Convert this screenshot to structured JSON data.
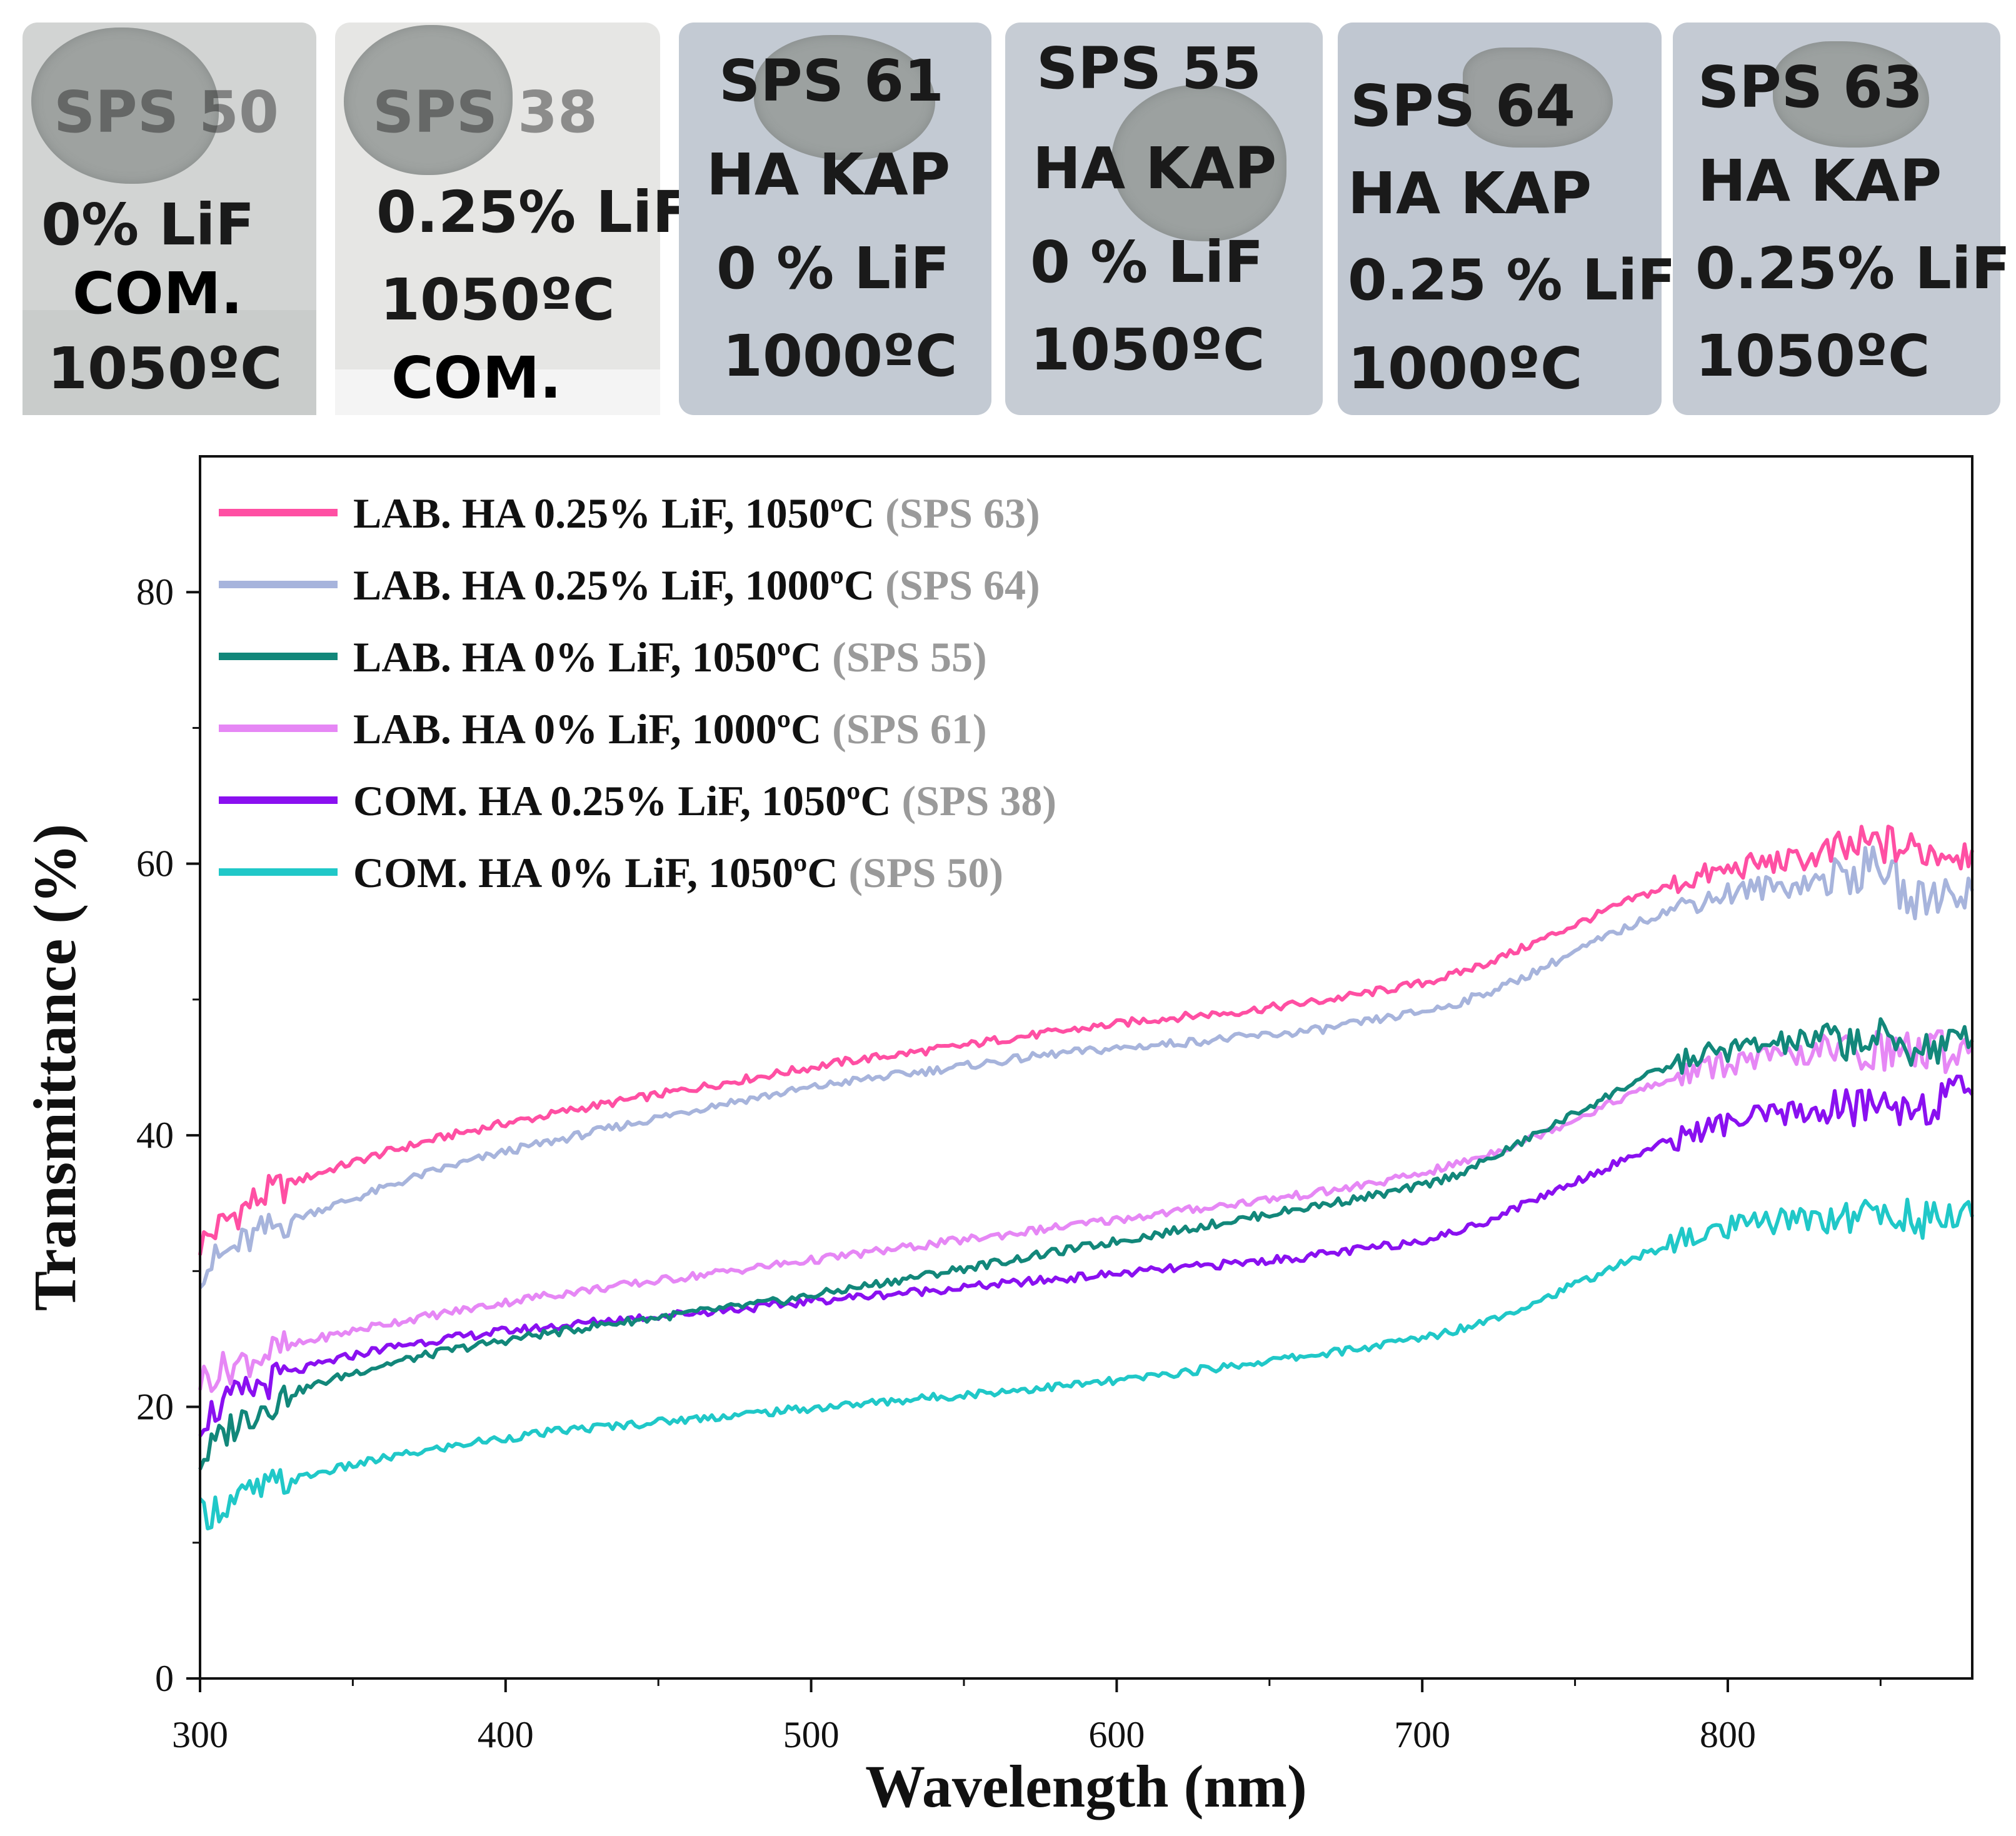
{
  "samples": [
    {
      "id": "SPS 50",
      "line1": "SPS 50",
      "line2": "0% LiF",
      "line3": "COM.",
      "line4": "1050ºC",
      "bg": "#d2d4d3"
    },
    {
      "id": "SPS 38",
      "line1": "SPS 38",
      "line2": "0.25% LiF",
      "line3": "1050ºC",
      "line4": "COM.",
      "bg": "#e6e6e4"
    },
    {
      "id": "SPS 61",
      "line1": "SPS 61",
      "line2": "HA KAP",
      "line3": "0 % LiF",
      "line4": "1000ºC",
      "bg": "#c3cad3"
    },
    {
      "id": "SPS 55",
      "line1": "SPS 55",
      "line2": "HA KAP",
      "line3": "0 % LiF",
      "line4": "1050ºC",
      "bg": "#c6ccd4"
    },
    {
      "id": "SPS 64",
      "line1": "SPS 64",
      "line2": "HA KAP",
      "line3": "0.25 % LiF",
      "line4": "1000ºC",
      "bg": "#c0c7d1"
    },
    {
      "id": "SPS 63",
      "line1": "SPS 63",
      "line2": "HA KAP",
      "line3": "0.25% LiF",
      "line4": "1050ºC",
      "bg": "#c4cad3"
    }
  ],
  "chart_data": {
    "type": "line",
    "xlabel": "Wavelength (nm)",
    "ylabel": "Transmittance (%)",
    "xlim": [
      300,
      880
    ],
    "ylim": [
      0,
      90
    ],
    "xticks": [
      300,
      400,
      500,
      600,
      700,
      800
    ],
    "yticks": [
      0,
      20,
      40,
      60,
      80
    ],
    "grid": false,
    "legend_position": "top-left",
    "x": [
      300,
      310,
      320,
      330,
      340,
      350,
      360,
      370,
      380,
      390,
      400,
      410,
      420,
      430,
      440,
      450,
      460,
      470,
      480,
      490,
      500,
      510,
      520,
      530,
      540,
      550,
      560,
      570,
      580,
      590,
      600,
      610,
      620,
      630,
      640,
      650,
      660,
      670,
      680,
      690,
      700,
      710,
      720,
      730,
      740,
      750,
      760,
      770,
      780,
      790,
      800,
      810,
      820,
      830,
      840,
      850,
      860,
      870,
      880
    ],
    "series": [
      {
        "name": "LAB. HA 0.25% LiF, 1050ºC",
        "tag": "(SPS 63)",
        "color": "#ff4fa3",
        "values": [
          32,
          34,
          35.5,
          36.5,
          37.3,
          38,
          38.7,
          39.3,
          39.9,
          40.4,
          40.9,
          41.3,
          41.8,
          42.2,
          42.6,
          43,
          43.4,
          43.8,
          44.2,
          44.6,
          45,
          45.4,
          45.7,
          46,
          46.3,
          46.6,
          47,
          47.3,
          47.6,
          47.9,
          48.2,
          48.5,
          48.7,
          48.9,
          49.1,
          49.4,
          49.7,
          50,
          50.4,
          50.8,
          51.2,
          51.8,
          52.6,
          53.5,
          54.5,
          55.5,
          56.5,
          57.5,
          58.3,
          59,
          59.5,
          60,
          60.2,
          60.5,
          61,
          61.5,
          61,
          61,
          61
        ]
      },
      {
        "name": "LAB. HA 0.25% LiF, 1000ºC",
        "tag": "(SPS 64)",
        "color": "#a7b4dc",
        "values": [
          30,
          31.5,
          32.8,
          33.8,
          34.6,
          35.3,
          36.1,
          36.9,
          37.6,
          38.2,
          38.8,
          39.3,
          39.8,
          40.3,
          40.8,
          41.3,
          41.8,
          42.3,
          42.7,
          43.1,
          43.5,
          43.9,
          44.2,
          44.5,
          44.8,
          45.1,
          45.4,
          45.7,
          46,
          46.2,
          46.4,
          46.6,
          46.8,
          47,
          47.2,
          47.4,
          47.6,
          47.9,
          48.3,
          48.7,
          49.1,
          49.6,
          50.4,
          51.3,
          52.4,
          53.5,
          54.6,
          55.6,
          56.5,
          57.3,
          57.8,
          58.2,
          58.4,
          58.8,
          59.2,
          60,
          57,
          58,
          58
        ]
      },
      {
        "name": "LAB. HA 0% LiF, 1050ºC",
        "tag": "(SPS 55)",
        "color": "#12877a",
        "values": [
          16,
          18.5,
          20,
          21,
          21.8,
          22.5,
          23.1,
          23.6,
          24.1,
          24.5,
          24.9,
          25.3,
          25.6,
          26,
          26.3,
          26.6,
          26.9,
          27.2,
          27.5,
          27.8,
          28.2,
          28.6,
          29,
          29.4,
          29.8,
          30.2,
          30.6,
          31,
          31.4,
          31.8,
          32.2,
          32.6,
          33,
          33.4,
          33.8,
          34.2,
          34.6,
          35,
          35.4,
          35.8,
          36.3,
          37,
          38,
          39.2,
          40.4,
          41.6,
          42.8,
          44,
          45,
          45.8,
          46.3,
          46.6,
          46.8,
          47,
          47,
          47,
          46.5,
          46.5,
          47
        ]
      },
      {
        "name": "LAB. HA 0% LiF, 1000ºC",
        "tag": "(SPS 61)",
        "color": "#e687f5",
        "values": [
          22,
          23,
          23.8,
          24.5,
          25.1,
          25.6,
          26.1,
          26.5,
          26.9,
          27.3,
          27.7,
          28.1,
          28.4,
          28.7,
          29,
          29.3,
          29.6,
          29.9,
          30.2,
          30.5,
          30.8,
          31.1,
          31.4,
          31.7,
          32,
          32.3,
          32.6,
          32.9,
          33.2,
          33.5,
          33.8,
          34.1,
          34.4,
          34.7,
          35,
          35.3,
          35.6,
          35.9,
          36.3,
          36.7,
          37.2,
          37.8,
          38.5,
          39.3,
          40.2,
          41.2,
          42.2,
          43.2,
          44,
          44.8,
          45.3,
          45.6,
          45.8,
          46,
          46.2,
          46.3,
          46.2,
          46.2,
          46.5
        ]
      },
      {
        "name": "COM. HA 0.25% LiF, 1050ºC",
        "tag": "(SPS 38)",
        "color": "#8a10f0",
        "values": [
          19,
          20.5,
          21.6,
          22.5,
          23.2,
          23.8,
          24.3,
          24.7,
          25,
          25.3,
          25.6,
          25.8,
          26,
          26.3,
          26.5,
          26.7,
          26.9,
          27.1,
          27.3,
          27.5,
          27.8,
          28,
          28.2,
          28.4,
          28.6,
          28.8,
          29,
          29.2,
          29.4,
          29.6,
          29.8,
          30,
          30.2,
          30.4,
          30.6,
          30.8,
          31,
          31.3,
          31.6,
          31.9,
          32.3,
          32.8,
          33.6,
          34.6,
          35.6,
          36.6,
          37.6,
          38.6,
          39.5,
          40.3,
          40.9,
          41.3,
          41.6,
          41.8,
          42,
          42.3,
          42.2,
          42.5,
          43
        ]
      },
      {
        "name": "COM. HA 0% LiF, 1050ºC",
        "tag": "(SPS 50)",
        "color": "#20c8c8",
        "values": [
          12,
          13,
          13.9,
          14.6,
          15.2,
          15.7,
          16.2,
          16.6,
          17,
          17.4,
          17.7,
          18,
          18.3,
          18.5,
          18.7,
          18.9,
          19.1,
          19.3,
          19.5,
          19.7,
          19.9,
          20.1,
          20.3,
          20.5,
          20.7,
          20.9,
          21.1,
          21.3,
          21.5,
          21.7,
          21.9,
          22.2,
          22.5,
          22.8,
          23.1,
          23.4,
          23.7,
          24,
          24.3,
          24.7,
          25.1,
          25.6,
          26.3,
          27.1,
          28,
          29,
          30,
          31,
          31.9,
          32.6,
          33.1,
          33.5,
          33.8,
          34,
          34.1,
          34.2,
          34,
          33.8,
          34
        ]
      }
    ]
  }
}
